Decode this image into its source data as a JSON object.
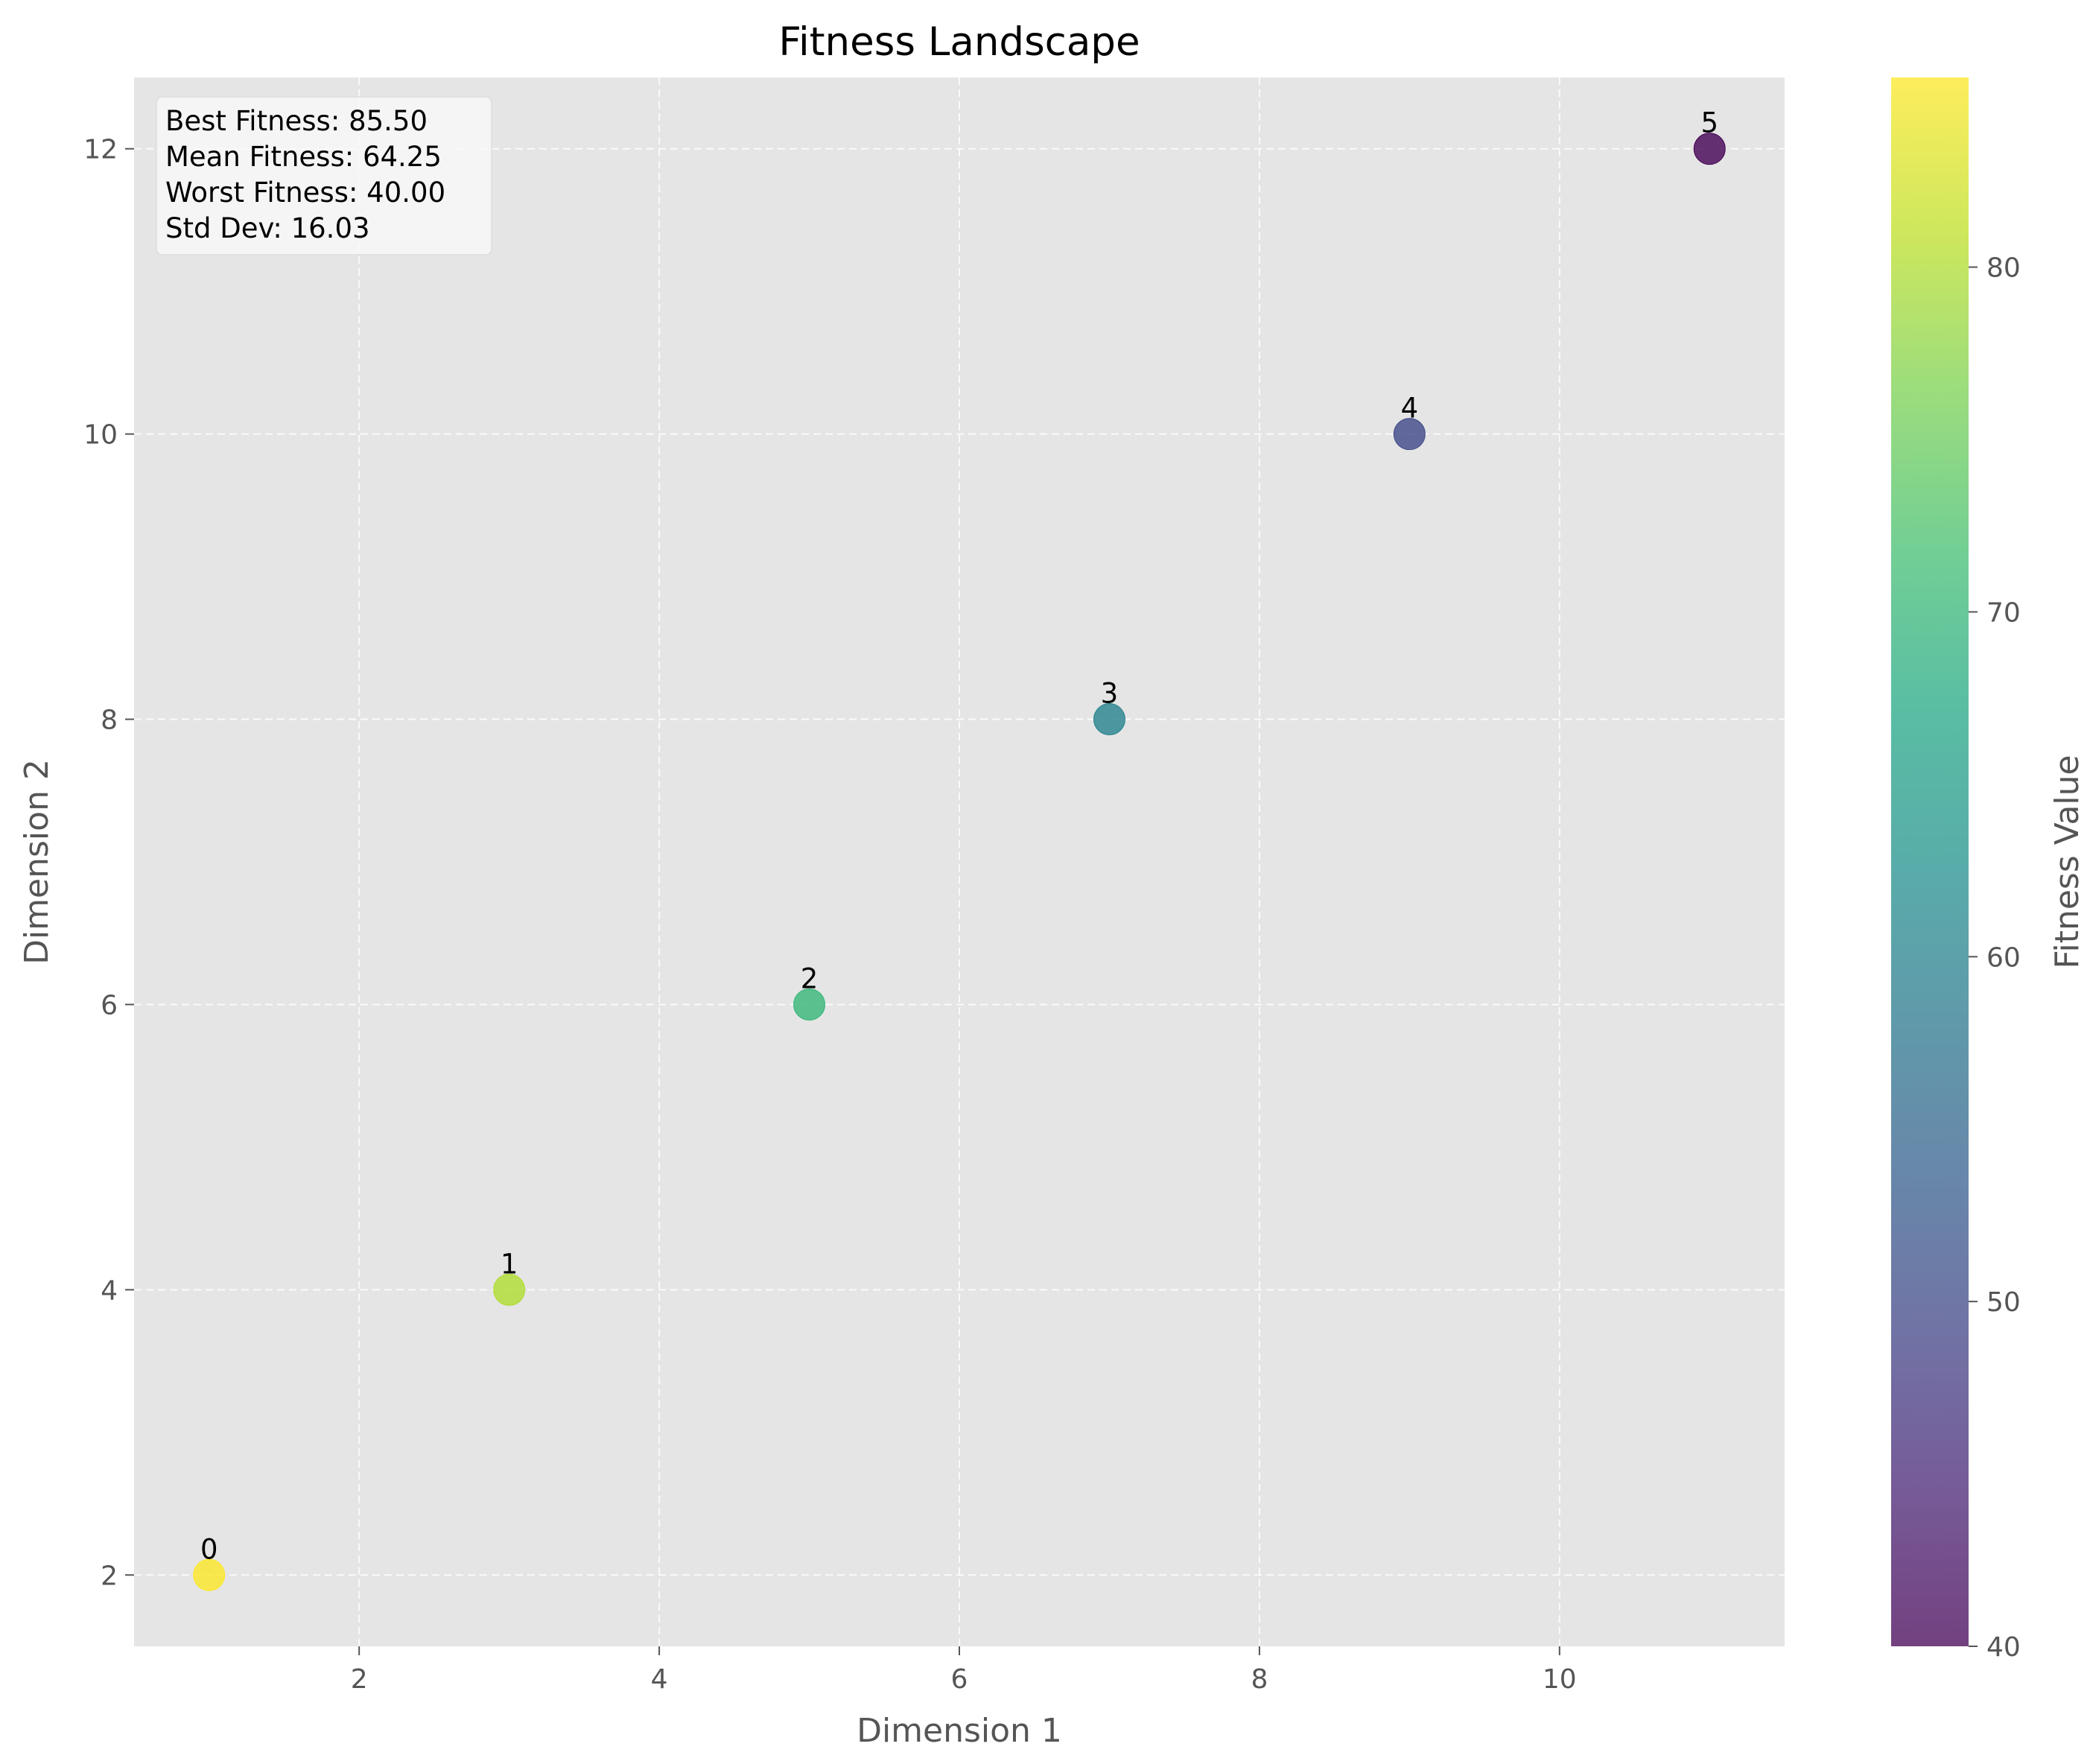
{
  "chart_data": {
    "type": "scatter",
    "title": "Fitness Landscape",
    "xlabel": "Dimension 1",
    "ylabel": "Dimension 2",
    "xlim": [
      0.5,
      11.5
    ],
    "ylim": [
      1.5,
      12.5
    ],
    "xticks": [
      2,
      4,
      6,
      8,
      10
    ],
    "yticks": [
      2,
      4,
      6,
      8,
      10,
      12
    ],
    "grid": true,
    "points": [
      {
        "label": "0",
        "x": 1,
        "y": 2,
        "fitness": 85.5
      },
      {
        "label": "1",
        "x": 3,
        "y": 4,
        "fitness": 80.0
      },
      {
        "label": "2",
        "x": 5,
        "y": 6,
        "fitness": 70.0
      },
      {
        "label": "3",
        "x": 7,
        "y": 8,
        "fitness": 60.0
      },
      {
        "label": "4",
        "x": 9,
        "y": 10,
        "fitness": 50.0
      },
      {
        "label": "5",
        "x": 11,
        "y": 12,
        "fitness": 40.0
      }
    ],
    "colorbar": {
      "label": "Fitness Value",
      "colormap": "viridis",
      "range": [
        40,
        85.5
      ],
      "ticks": [
        40,
        50,
        60,
        70,
        80
      ]
    },
    "stats_box": {
      "placement": "top-left",
      "lines": [
        "Best Fitness: 85.50",
        "Mean Fitness: 64.25",
        "Worst Fitness: 40.00",
        "Std Dev: 16.03"
      ]
    },
    "colors": {
      "plot_background": "#e5e5e5",
      "grid": "#ffffff",
      "tick_text": "#555555"
    }
  }
}
